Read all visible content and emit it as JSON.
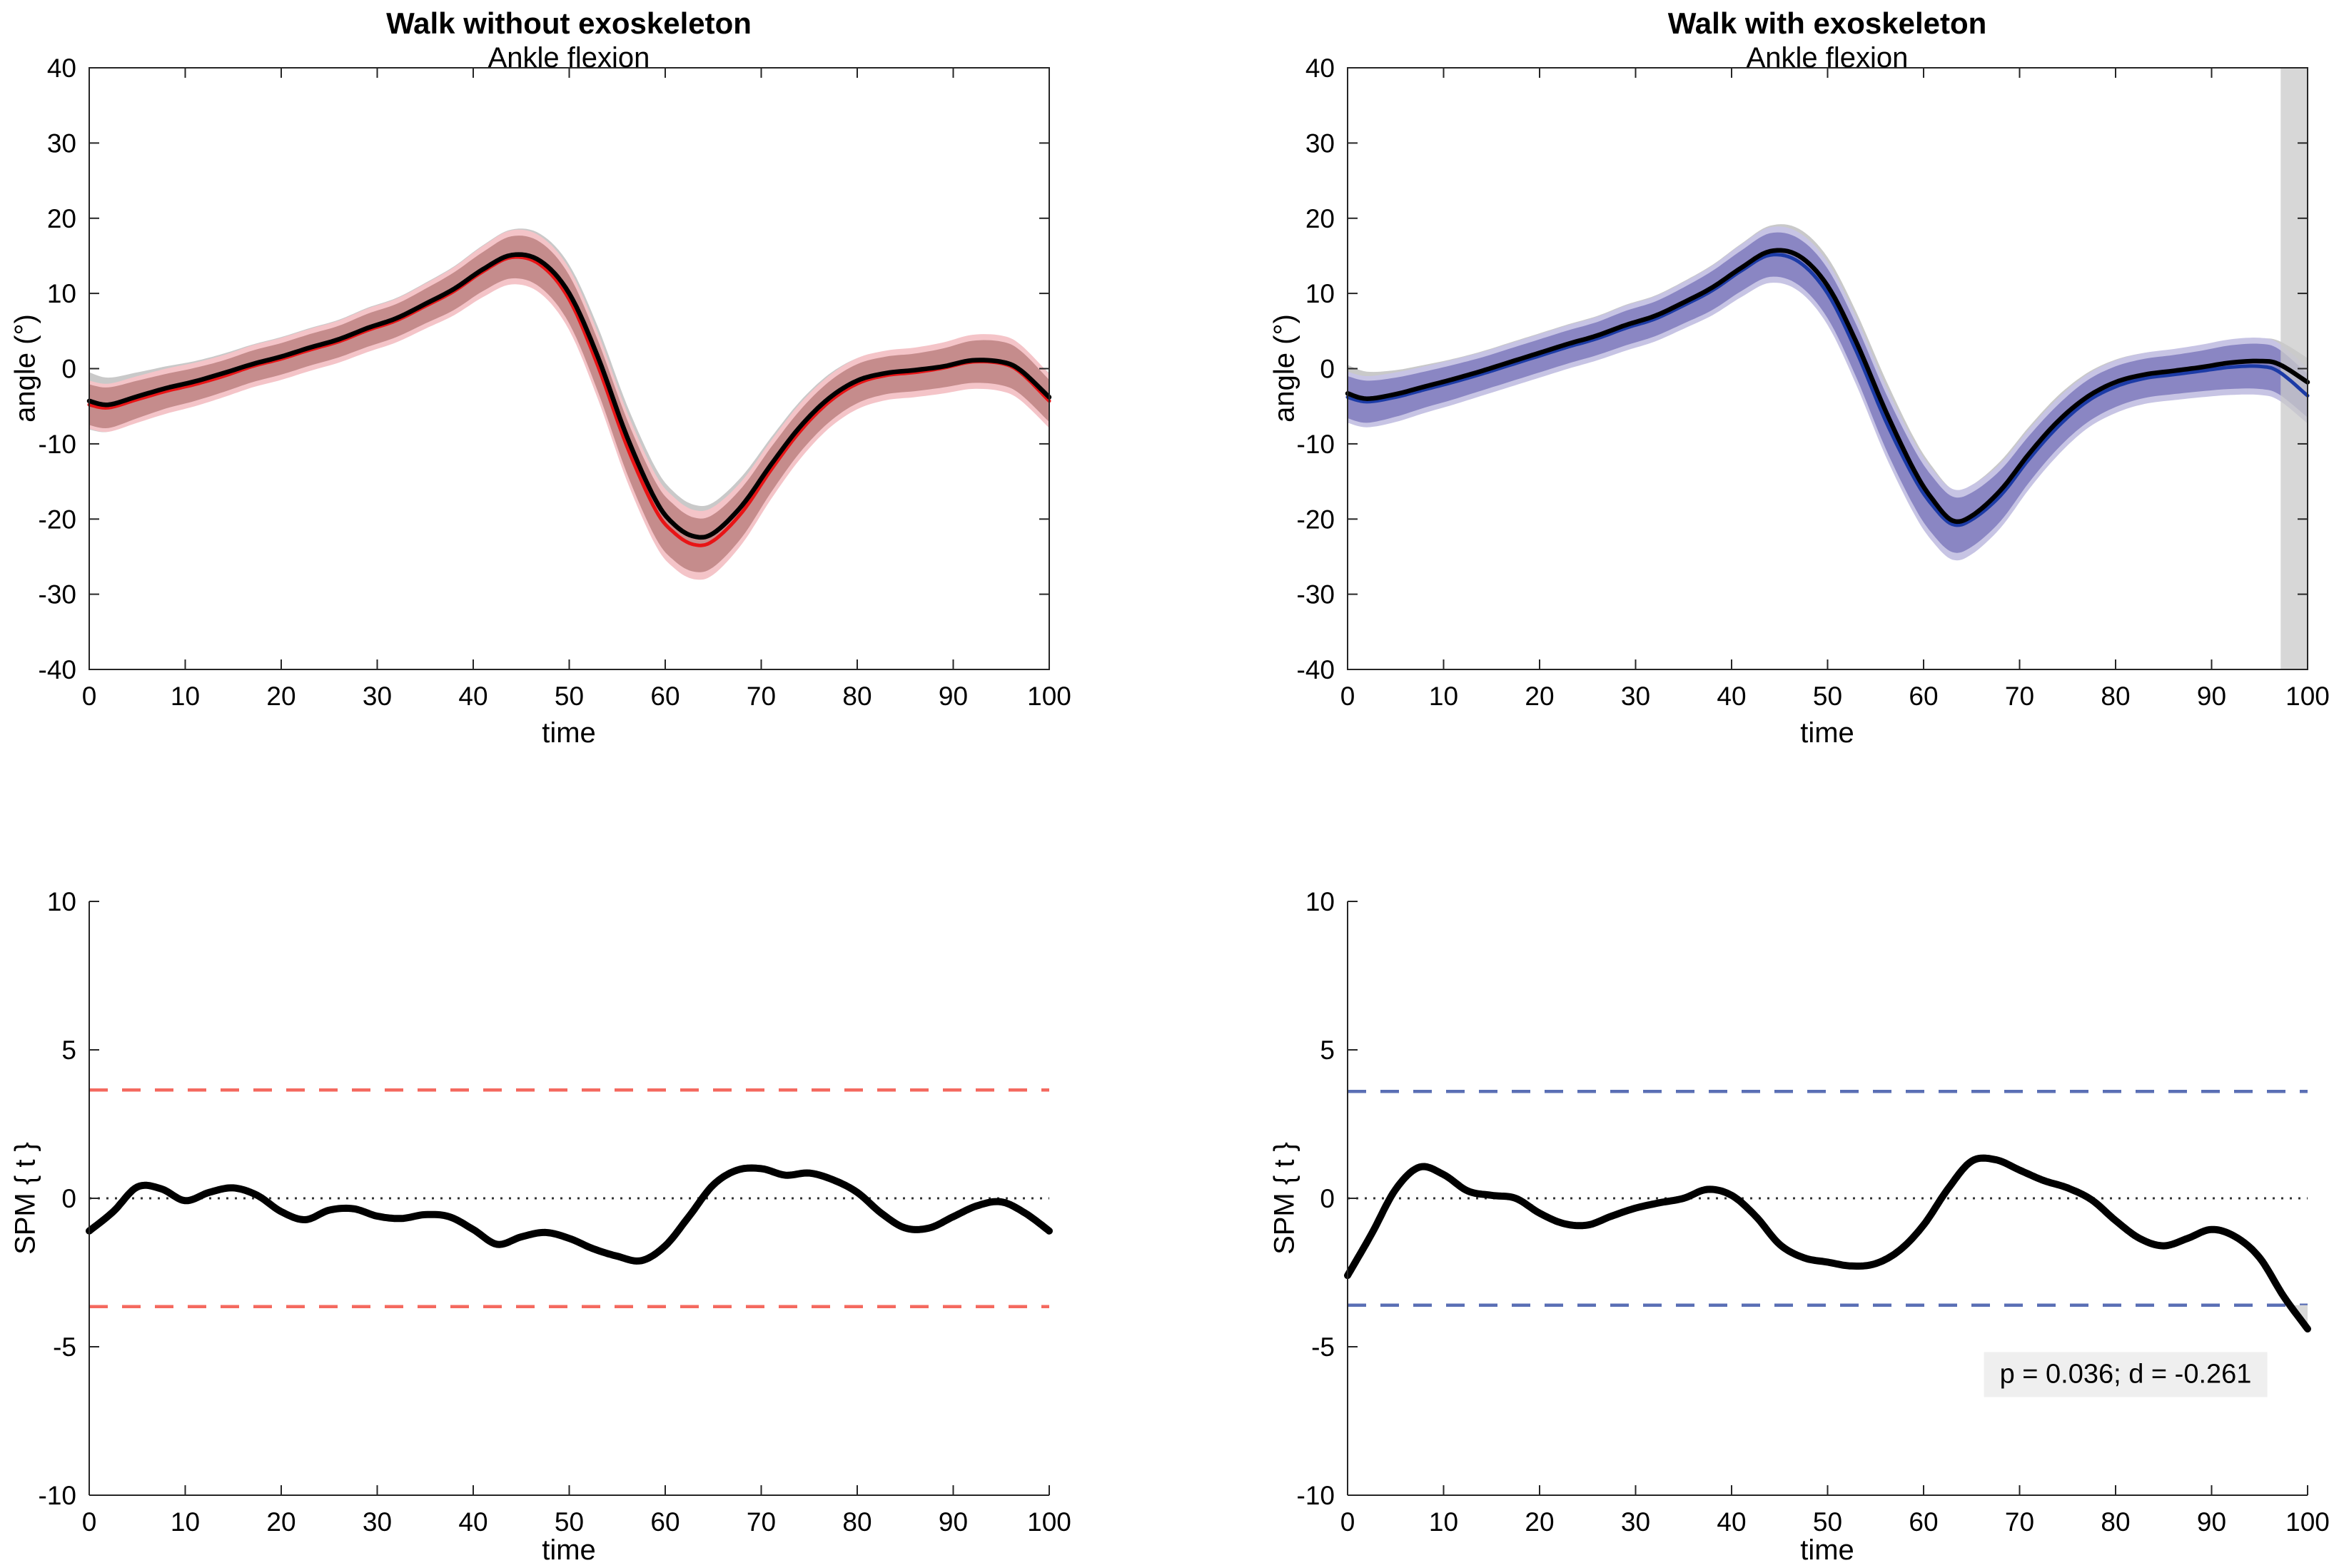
{
  "figure": {
    "background": "#ffffff",
    "annotation_box_bg": "#efefef",
    "spine_color": "#262626",
    "zero_line_color": "#333333",
    "cluster_fill": "#d8d8d8",
    "sig_region_fill": "#c9c9c9"
  },
  "chart_data": [
    {
      "type": "line",
      "id": "angle-without-exo",
      "title": "Walk without exoskeleton",
      "subtitle": "Ankle flexion",
      "xlabel": "time",
      "ylabel": "angle (°)",
      "xlim": [
        0,
        100
      ],
      "ylim": [
        -40,
        40
      ],
      "xticks": [
        0,
        10,
        20,
        30,
        40,
        50,
        60,
        70,
        80,
        90,
        100
      ],
      "yticks": [
        -40,
        -30,
        -20,
        -10,
        0,
        10,
        20,
        30,
        40
      ],
      "legend_position": "none",
      "grid": false,
      "x": [
        0,
        2,
        5,
        8,
        11,
        14,
        17,
        20,
        23,
        26,
        29,
        32,
        35,
        38,
        41,
        44,
        47,
        50,
        53,
        56,
        59,
        61,
        63,
        65,
        68,
        71,
        74,
        77,
        80,
        83,
        86,
        89,
        92,
        95,
        97,
        100
      ],
      "series": [
        {
          "name": "mean-black",
          "color": "#000000",
          "values": [
            -4.3,
            -4.8,
            -3.7,
            -2.6,
            -1.7,
            -0.6,
            0.6,
            1.6,
            2.8,
            3.9,
            5.4,
            6.7,
            8.6,
            10.6,
            13.2,
            15.1,
            14.3,
            10.0,
            1.5,
            -9.0,
            -17.5,
            -20.8,
            -22.3,
            -21.9,
            -18.2,
            -12.8,
            -7.8,
            -4.0,
            -1.6,
            -0.6,
            -0.2,
            0.3,
            1.1,
            0.9,
            -0.2,
            -3.8
          ]
        },
        {
          "name": "mean-red",
          "color": "#e81416",
          "values": [
            -4.8,
            -5.2,
            -4.1,
            -3.0,
            -2.1,
            -1.0,
            0.3,
            1.3,
            2.5,
            3.6,
            5.1,
            6.4,
            8.3,
            10.3,
            12.9,
            14.8,
            13.8,
            9.2,
            0.3,
            -10.3,
            -18.8,
            -21.9,
            -23.4,
            -22.9,
            -19.1,
            -13.5,
            -8.4,
            -4.5,
            -2.0,
            -0.9,
            -0.5,
            0.1,
            0.9,
            0.7,
            -0.5,
            -4.3
          ]
        }
      ],
      "band_halfwidth_gray": [
        3.8,
        3.6,
        3.2,
        2.9,
        2.7,
        2.6,
        2.6,
        2.6,
        2.6,
        2.6,
        2.7,
        2.7,
        2.8,
        3.0,
        3.2,
        3.4,
        3.6,
        3.8,
        4.0,
        4.2,
        4.3,
        4.3,
        4.2,
        4.1,
        3.9,
        3.6,
        3.4,
        3.2,
        3.0,
        2.9,
        2.8,
        2.8,
        2.9,
        3.0,
        3.1,
        3.2
      ],
      "band_halfwidth_outer": [
        3.2,
        3.2,
        3.1,
        3.0,
        2.9,
        2.8,
        2.8,
        2.8,
        2.8,
        2.8,
        2.9,
        2.9,
        3.0,
        3.2,
        3.4,
        3.6,
        3.8,
        4.1,
        4.4,
        4.6,
        4.7,
        4.7,
        4.6,
        4.5,
        4.2,
        3.9,
        3.7,
        3.5,
        3.4,
        3.3,
        3.3,
        3.4,
        3.6,
        3.7,
        3.7,
        3.6
      ],
      "band_halfwidth_inner": [
        2.7,
        2.7,
        2.5,
        2.3,
        2.2,
        2.1,
        2.1,
        2.1,
        2.1,
        2.1,
        2.2,
        2.2,
        2.3,
        2.5,
        2.6,
        2.8,
        3.0,
        3.2,
        3.4,
        3.6,
        3.7,
        3.7,
        3.6,
        3.5,
        3.3,
        3.0,
        2.8,
        2.7,
        2.6,
        2.5,
        2.5,
        2.6,
        2.8,
        2.9,
        2.9,
        2.8
      ],
      "colors": {
        "band_gray": "#c9c9c9",
        "band_outer": "#f4c4c8",
        "band_inner": "#c58c8c"
      },
      "sig_regions": []
    },
    {
      "type": "line",
      "id": "angle-with-exo",
      "title": "Walk with exoskeleton",
      "subtitle": "Ankle flexion",
      "xlabel": "time",
      "ylabel": "angle (°)",
      "xlim": [
        0,
        100
      ],
      "ylim": [
        -40,
        40
      ],
      "xticks": [
        0,
        10,
        20,
        30,
        40,
        50,
        60,
        70,
        80,
        90,
        100
      ],
      "yticks": [
        -40,
        -30,
        -20,
        -10,
        0,
        10,
        20,
        30,
        40
      ],
      "legend_position": "none",
      "grid": false,
      "x": [
        0,
        2,
        5,
        8,
        11,
        14,
        17,
        20,
        23,
        26,
        29,
        32,
        35,
        38,
        41,
        44,
        47,
        50,
        53,
        56,
        59,
        61,
        63,
        65,
        68,
        71,
        74,
        77,
        80,
        83,
        86,
        89,
        92,
        95,
        97,
        100
      ],
      "series": [
        {
          "name": "mean-black",
          "color": "#000000",
          "values": [
            -3.3,
            -4.0,
            -3.4,
            -2.4,
            -1.4,
            -0.3,
            0.9,
            2.1,
            3.3,
            4.4,
            5.8,
            7.0,
            8.8,
            10.8,
            13.4,
            15.6,
            15.0,
            11.0,
            3.5,
            -5.5,
            -13.5,
            -17.5,
            -20.2,
            -19.6,
            -16.2,
            -11.3,
            -7.0,
            -3.8,
            -1.8,
            -0.8,
            -0.3,
            0.2,
            0.8,
            1.0,
            0.6,
            -1.8
          ]
        },
        {
          "name": "mean-blue",
          "color": "#1c3ba6",
          "values": [
            -3.8,
            -4.4,
            -3.8,
            -2.8,
            -1.8,
            -0.7,
            0.5,
            1.7,
            2.9,
            4.0,
            5.4,
            6.6,
            8.4,
            10.4,
            13.0,
            15.1,
            14.2,
            10.0,
            2.3,
            -6.8,
            -14.5,
            -18.3,
            -20.7,
            -20.1,
            -16.9,
            -12.0,
            -7.7,
            -4.4,
            -2.4,
            -1.3,
            -0.8,
            -0.3,
            0.2,
            0.3,
            -0.4,
            -3.6
          ]
        }
      ],
      "band_halfwidth_gray": [
        3.8,
        3.6,
        3.2,
        2.9,
        2.7,
        2.6,
        2.6,
        2.6,
        2.6,
        2.6,
        2.7,
        2.7,
        2.8,
        3.0,
        3.2,
        3.4,
        3.6,
        3.8,
        4.0,
        4.2,
        4.3,
        4.3,
        4.2,
        4.1,
        3.9,
        3.6,
        3.4,
        3.2,
        3.0,
        2.9,
        2.8,
        2.8,
        2.9,
        3.0,
        3.1,
        3.2
      ],
      "band_halfwidth_outer": [
        3.4,
        3.4,
        3.3,
        3.1,
        3.0,
        2.9,
        2.9,
        2.9,
        2.9,
        2.9,
        3.0,
        3.0,
        3.1,
        3.3,
        3.5,
        3.7,
        3.9,
        4.2,
        4.5,
        4.7,
        4.8,
        4.8,
        4.7,
        4.6,
        4.3,
        4.0,
        3.8,
        3.6,
        3.5,
        3.4,
        3.4,
        3.5,
        3.7,
        3.8,
        3.8,
        3.7
      ],
      "band_halfwidth_inner": [
        2.8,
        2.8,
        2.6,
        2.4,
        2.3,
        2.2,
        2.2,
        2.2,
        2.2,
        2.2,
        2.3,
        2.3,
        2.4,
        2.6,
        2.7,
        2.9,
        3.1,
        3.3,
        3.5,
        3.7,
        3.8,
        3.8,
        3.7,
        3.6,
        3.4,
        3.1,
        2.9,
        2.8,
        2.7,
        2.6,
        2.6,
        2.7,
        2.9,
        3.0,
        3.0,
        2.9
      ],
      "colors": {
        "band_gray": "#c9c9c9",
        "band_outer": "#c7c4e4",
        "band_inner": "#8a86c3"
      },
      "sig_regions": [
        [
          97.2,
          100
        ]
      ]
    },
    {
      "type": "line",
      "id": "spm-without-exo",
      "title": "",
      "subtitle": "",
      "xlabel": "time",
      "ylabel": "SPM { t }",
      "xlim": [
        0,
        100
      ],
      "ylim": [
        -10,
        10
      ],
      "xticks": [
        0,
        10,
        20,
        30,
        40,
        50,
        60,
        70,
        80,
        90,
        100
      ],
      "yticks": [
        -10,
        -5,
        0,
        5,
        10
      ],
      "legend_position": "none",
      "grid": false,
      "threshold": 3.65,
      "threshold_color": "#f4695f",
      "zero_line": 0,
      "x": [
        0,
        2.5,
        5,
        7.5,
        10,
        12.5,
        15,
        17.5,
        20,
        22.5,
        25,
        27.5,
        30,
        32.5,
        35,
        37.5,
        40,
        42.5,
        45,
        47.5,
        50,
        52.5,
        55,
        57.5,
        60,
        62.5,
        65,
        67.5,
        70,
        72.5,
        75,
        77.5,
        80,
        82.5,
        85,
        87.5,
        90,
        92.5,
        95,
        97.5,
        100
      ],
      "series": [
        {
          "name": "t-statistic",
          "color": "#000000",
          "values": [
            -1.1,
            -0.45,
            0.38,
            0.32,
            -0.08,
            0.2,
            0.35,
            0.1,
            -0.45,
            -0.72,
            -0.4,
            -0.35,
            -0.6,
            -0.68,
            -0.55,
            -0.62,
            -1.05,
            -1.55,
            -1.3,
            -1.15,
            -1.35,
            -1.7,
            -1.95,
            -2.1,
            -1.6,
            -0.6,
            0.45,
            0.95,
            1.0,
            0.78,
            0.85,
            0.62,
            0.2,
            -0.5,
            -1.0,
            -1.0,
            -0.62,
            -0.25,
            -0.12,
            -0.5,
            -1.1
          ]
        }
      ],
      "annotation": "",
      "has_cluster": false
    },
    {
      "type": "line",
      "id": "spm-with-exo",
      "title": "",
      "subtitle": "",
      "xlabel": "time",
      "ylabel": "SPM { t }",
      "xlim": [
        0,
        100
      ],
      "ylim": [
        -10,
        10
      ],
      "xticks": [
        0,
        10,
        20,
        30,
        40,
        50,
        60,
        70,
        80,
        90,
        100
      ],
      "yticks": [
        -10,
        -5,
        0,
        5,
        10
      ],
      "legend_position": "none",
      "grid": false,
      "threshold": 3.6,
      "threshold_color": "#5a6fb5",
      "zero_line": 0,
      "x": [
        0,
        2.5,
        5,
        7.5,
        10,
        12.5,
        15,
        17.5,
        20,
        22.5,
        25,
        27.5,
        30,
        32.5,
        35,
        37.5,
        40,
        42.5,
        45,
        47.5,
        50,
        52.5,
        55,
        57.5,
        60,
        62.5,
        65,
        67.5,
        70,
        72.5,
        75,
        77.5,
        80,
        82.5,
        85,
        87.5,
        90,
        92.5,
        95,
        97.5,
        100
      ],
      "series": [
        {
          "name": "t-statistic",
          "color": "#000000",
          "values": [
            -2.6,
            -1.2,
            0.3,
            1.05,
            0.8,
            0.25,
            0.1,
            0.0,
            -0.5,
            -0.85,
            -0.9,
            -0.6,
            -0.33,
            -0.15,
            0.0,
            0.3,
            0.1,
            -0.6,
            -1.55,
            -2.0,
            -2.15,
            -2.28,
            -2.2,
            -1.75,
            -0.9,
            0.3,
            1.25,
            1.3,
            0.95,
            0.6,
            0.35,
            -0.05,
            -0.75,
            -1.35,
            -1.6,
            -1.35,
            -1.05,
            -1.3,
            -2.0,
            -3.3,
            -4.4
          ]
        }
      ],
      "annotation": "p = 0.036; d = -0.261",
      "has_cluster": true
    }
  ]
}
